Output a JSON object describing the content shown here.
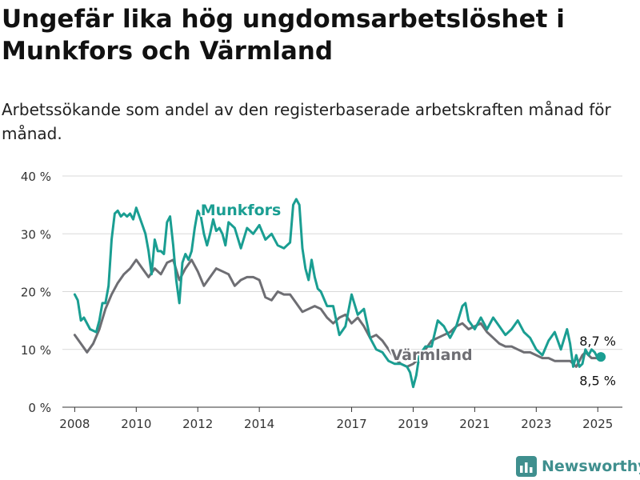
{
  "header": {
    "title": "Ungefär lika hög ungdomsarbetslöshet i Munkfors och Värmland",
    "subtitle": "Arbetssökande som andel av den registerbaserade arbetskraften månad för månad."
  },
  "brand": {
    "name": "Newsworthy",
    "icon": "bar-chart-logo-icon",
    "color": "#3f8f8e"
  },
  "chart_data": {
    "type": "line",
    "title": "Ungefär lika hög ungdomsarbetslöshet i Munkfors och Värmland",
    "subtitle": "Arbetssökande som andel av den registerbaserade arbetskraften månad för månad.",
    "xlabel": "",
    "ylabel": "",
    "xlim": [
      2007.6,
      2025.8
    ],
    "ylim": [
      0,
      40
    ],
    "x_ticks": [
      2008,
      2010,
      2012,
      2014,
      2017,
      2019,
      2021,
      2023,
      2025
    ],
    "x_tick_labels": [
      "2008",
      "2010",
      "2012",
      "2014",
      "2017",
      "2019",
      "2021",
      "2023",
      "2025"
    ],
    "y_ticks": [
      0,
      10,
      20,
      30,
      40
    ],
    "y_tick_labels": [
      "0 %",
      "10 %",
      "20 %",
      "30 %",
      "40 %"
    ],
    "grid": true,
    "legend": "inline labels",
    "series": [
      {
        "name": "Munkfors",
        "color": "#1a9e92",
        "label_at": [
          2013.4,
          33.2
        ],
        "x": [
          2008.0,
          2008.1,
          2008.2,
          2008.3,
          2008.5,
          2008.7,
          2008.8,
          2008.9,
          2009.0,
          2009.1,
          2009.2,
          2009.3,
          2009.4,
          2009.5,
          2009.6,
          2009.7,
          2009.8,
          2009.9,
          2010.0,
          2010.1,
          2010.2,
          2010.3,
          2010.4,
          2010.5,
          2010.6,
          2010.7,
          2010.8,
          2010.9,
          2011.0,
          2011.1,
          2011.2,
          2011.3,
          2011.4,
          2011.5,
          2011.6,
          2011.7,
          2011.8,
          2011.9,
          2012.0,
          2012.1,
          2012.2,
          2012.3,
          2012.4,
          2012.5,
          2012.6,
          2012.7,
          2012.8,
          2012.9,
          2013.0,
          2013.2,
          2013.4,
          2013.6,
          2013.8,
          2014.0,
          2014.2,
          2014.4,
          2014.6,
          2014.8,
          2015.0,
          2015.1,
          2015.2,
          2015.3,
          2015.4,
          2015.5,
          2015.6,
          2015.7,
          2015.8,
          2015.9,
          2016.0,
          2016.2,
          2016.4,
          2016.6,
          2016.8,
          2017.0,
          2017.2,
          2017.4,
          2017.6,
          2017.8,
          2018.0,
          2018.2,
          2018.4,
          2018.6,
          2018.8,
          2018.9,
          2019.0,
          2019.1,
          2019.2,
          2019.4,
          2019.6,
          2019.8,
          2020.0,
          2020.2,
          2020.4,
          2020.6,
          2020.7,
          2020.8,
          2021.0,
          2021.2,
          2021.4,
          2021.6,
          2021.8,
          2022.0,
          2022.2,
          2022.4,
          2022.6,
          2022.8,
          2023.0,
          2023.2,
          2023.4,
          2023.6,
          2023.8,
          2024.0,
          2024.1,
          2024.2,
          2024.3,
          2024.4,
          2024.5,
          2024.6,
          2024.7,
          2024.8,
          2024.9,
          2025.0,
          2025.1
        ],
        "y": [
          19.5,
          18.5,
          15.0,
          15.5,
          13.5,
          13.0,
          15.0,
          18.0,
          18.0,
          21.0,
          29.0,
          33.5,
          34.0,
          33.0,
          33.5,
          33.0,
          33.5,
          32.5,
          34.5,
          33.0,
          31.5,
          30.0,
          27.0,
          23.0,
          29.0,
          27.0,
          27.0,
          26.5,
          32.0,
          33.0,
          28.0,
          22.0,
          18.0,
          25.0,
          26.5,
          25.5,
          27.0,
          31.0,
          34.0,
          33.0,
          30.0,
          28.0,
          30.0,
          32.5,
          30.5,
          31.0,
          30.0,
          28.0,
          32.0,
          31.0,
          27.5,
          31.0,
          30.0,
          31.5,
          29.0,
          30.0,
          28.0,
          27.5,
          28.5,
          35.0,
          36.0,
          35.0,
          27.5,
          24.0,
          22.0,
          25.5,
          22.5,
          20.5,
          20.0,
          17.5,
          17.5,
          12.5,
          14.0,
          19.5,
          16.0,
          17.0,
          12.0,
          10.0,
          9.5,
          8.0,
          7.5,
          7.5,
          7.0,
          6.0,
          3.5,
          5.5,
          9.0,
          10.5,
          10.5,
          15.0,
          14.0,
          12.0,
          14.0,
          17.5,
          18.0,
          15.0,
          13.5,
          15.5,
          13.5,
          15.5,
          14.0,
          12.5,
          13.5,
          15.0,
          13.0,
          12.0,
          10.0,
          9.0,
          11.5,
          13.0,
          10.0,
          13.5,
          11.0,
          7.0,
          9.0,
          7.0,
          7.5,
          10.0,
          9.0,
          10.0,
          9.5,
          8.5,
          8.7
        ]
      },
      {
        "name": "Värmland",
        "color": "#6e6e73",
        "label_at": [
          2019.6,
          8.2
        ],
        "x": [
          2008.0,
          2008.2,
          2008.4,
          2008.6,
          2008.8,
          2009.0,
          2009.2,
          2009.4,
          2009.6,
          2009.8,
          2010.0,
          2010.2,
          2010.4,
          2010.6,
          2010.8,
          2011.0,
          2011.2,
          2011.4,
          2011.6,
          2011.8,
          2012.0,
          2012.2,
          2012.4,
          2012.6,
          2012.8,
          2013.0,
          2013.2,
          2013.4,
          2013.6,
          2013.8,
          2014.0,
          2014.2,
          2014.4,
          2014.6,
          2014.8,
          2015.0,
          2015.2,
          2015.4,
          2015.6,
          2015.8,
          2016.0,
          2016.2,
          2016.4,
          2016.6,
          2016.8,
          2017.0,
          2017.2,
          2017.4,
          2017.6,
          2017.8,
          2018.0,
          2018.2,
          2018.4,
          2018.6,
          2018.8,
          2019.0,
          2019.2,
          2019.4,
          2019.6,
          2019.8,
          2020.0,
          2020.2,
          2020.4,
          2020.6,
          2020.8,
          2021.0,
          2021.2,
          2021.4,
          2021.6,
          2021.8,
          2022.0,
          2022.2,
          2022.4,
          2022.6,
          2022.8,
          2023.0,
          2023.2,
          2023.4,
          2023.6,
          2023.8,
          2024.0,
          2024.1,
          2024.2,
          2024.3,
          2024.4,
          2024.5,
          2024.6,
          2024.7,
          2024.8,
          2024.9,
          2025.0,
          2025.1
        ],
        "y": [
          12.5,
          11.0,
          9.5,
          11.0,
          13.5,
          17.0,
          19.5,
          21.5,
          23.0,
          24.0,
          25.5,
          24.0,
          22.5,
          24.0,
          23.0,
          25.0,
          25.5,
          22.0,
          24.0,
          25.5,
          23.5,
          21.0,
          22.5,
          24.0,
          23.5,
          23.0,
          21.0,
          22.0,
          22.5,
          22.5,
          22.0,
          19.0,
          18.5,
          20.0,
          19.5,
          19.5,
          18.0,
          16.5,
          17.0,
          17.5,
          17.0,
          15.5,
          14.5,
          15.5,
          16.0,
          14.5,
          15.5,
          14.0,
          12.0,
          12.5,
          11.5,
          10.0,
          8.5,
          7.5,
          7.0,
          7.5,
          8.5,
          10.0,
          11.5,
          12.0,
          12.5,
          13.0,
          14.0,
          14.5,
          13.5,
          14.0,
          14.5,
          13.0,
          12.0,
          11.0,
          10.5,
          10.5,
          10.0,
          9.5,
          9.5,
          9.0,
          8.5,
          8.5,
          8.0,
          8.0,
          8.0,
          8.0,
          7.5,
          7.0,
          8.0,
          9.0,
          9.5,
          9.0,
          8.5,
          8.5,
          8.5,
          8.5
        ]
      }
    ],
    "end_labels": [
      {
        "text": "8,7 %",
        "x": 2025.1,
        "y": 8.7,
        "series": "Munkfors",
        "position": "above"
      },
      {
        "text": "8,5 %",
        "x": 2025.1,
        "y": 8.5,
        "series": "Värmland",
        "position": "below"
      }
    ]
  }
}
